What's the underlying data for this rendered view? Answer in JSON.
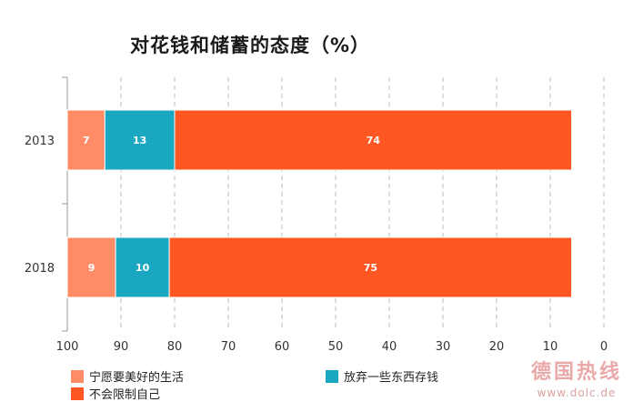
{
  "chart_data": {
    "type": "bar",
    "orientation": "horizontal-stacked",
    "title": "对花钱和储蓄的态度（%）",
    "categories": [
      "2013",
      "2018"
    ],
    "series": [
      {
        "name": "宁愿要美好的生活",
        "values": [
          7,
          9
        ],
        "color": "#ff8c66"
      },
      {
        "name": "放弃一些东西存钱",
        "values": [
          13,
          10
        ],
        "color": "#1aa7c2"
      },
      {
        "name": "不会限制自己",
        "values": [
          74,
          75
        ],
        "color": "#ff5722"
      }
    ],
    "xlim": [
      100,
      0
    ],
    "xticks": [
      100,
      90,
      80,
      70,
      60,
      50,
      40,
      30,
      20,
      10,
      0
    ],
    "grid": "vertical dashed",
    "legend_position": "bottom-left"
  },
  "watermark": {
    "line1": "德国热线",
    "line2": "www.dolc.de"
  }
}
